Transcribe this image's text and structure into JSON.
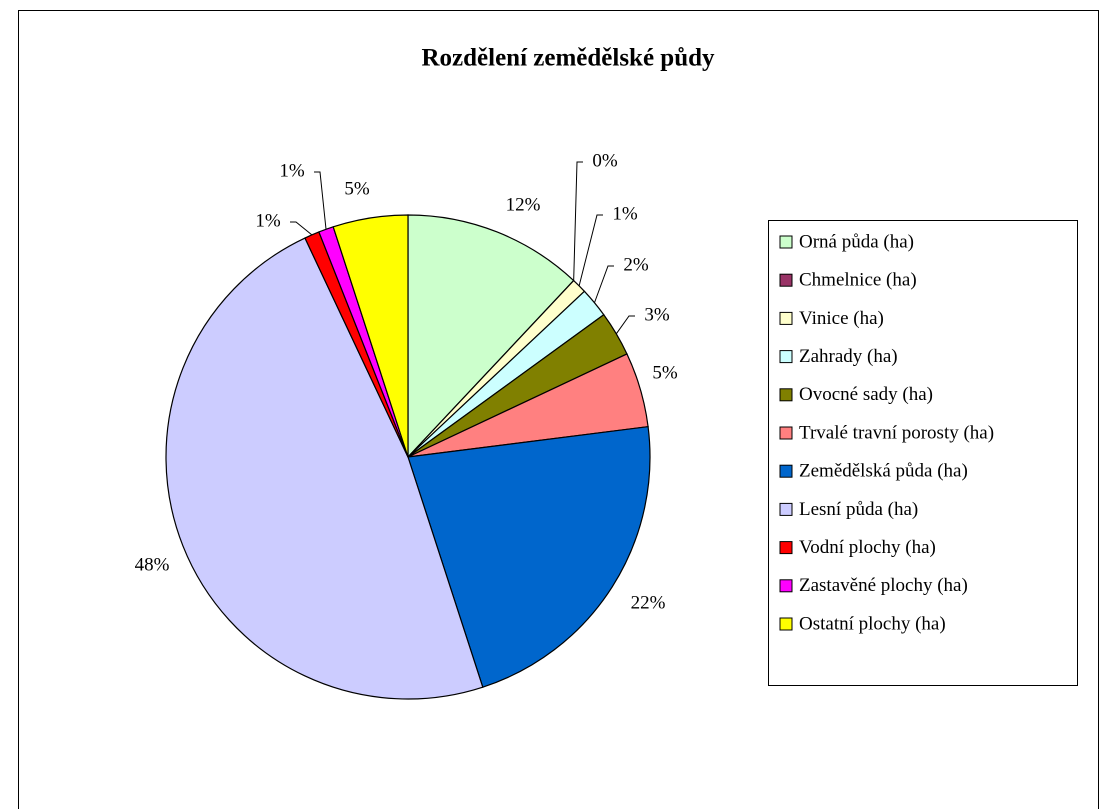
{
  "chart_data": {
    "type": "pie",
    "title": "Rozdělení zemědělské půdy",
    "categories": [
      "Orná půda (ha)",
      "Chmelnice (ha)",
      "Vinice (ha)",
      "Zahrady (ha)",
      "Ovocné sady (ha)",
      "Trvalé travní porosty (ha)",
      "Zemědělská půda (ha)",
      "Lesní půda (ha)",
      "Vodní plochy (ha)",
      "Zastavěné plochy (ha)",
      "Ostatní plochy (ha)"
    ],
    "values": [
      12,
      0,
      1,
      2,
      3,
      5,
      22,
      48,
      1,
      1,
      5
    ],
    "value_labels": [
      "12%",
      "0%",
      "1%",
      "2%",
      "3%",
      "5%",
      "22%",
      "48%",
      "1%",
      "1%",
      "5%"
    ],
    "colors": [
      "#ccffcc",
      "#993366",
      "#ffffcc",
      "#ccffff",
      "#808000",
      "#ff8080",
      "#0066cc",
      "#ccccff",
      "#ff0000",
      "#ff00ff",
      "#ffff00"
    ],
    "legend": "right"
  }
}
